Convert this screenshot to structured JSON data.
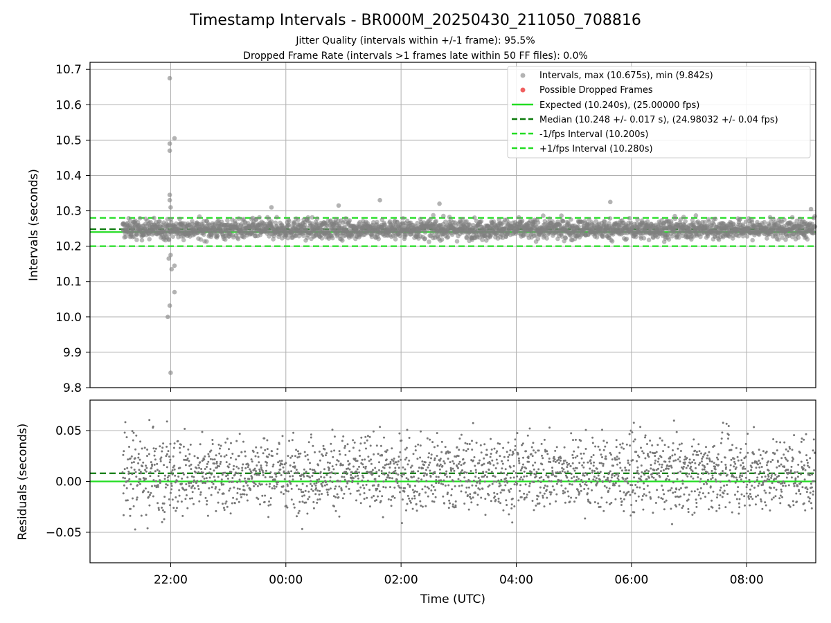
{
  "chart_data": [
    {
      "type": "scatter",
      "title": "Timestamp Intervals - BR000M_20250430_211050_708816",
      "subtitle_lines": [
        "Jitter Quality (intervals within +/-1 frame): 95.5%",
        "Dropped Frame Rate (intervals >1 frames late within 50 FF files): 0.0%"
      ],
      "xlabel": "",
      "ylabel": "Intervals (seconds)",
      "ylim": [
        9.8,
        10.72
      ],
      "yticks": [
        9.8,
        9.9,
        10.0,
        10.1,
        10.2,
        10.3,
        10.4,
        10.5,
        10.6,
        10.7
      ],
      "ytick_labels": [
        "9.8",
        "9.9",
        "10.0",
        "10.1",
        "10.2",
        "10.3",
        "10.4",
        "10.5",
        "10.6",
        "10.7"
      ],
      "xlim_hours": [
        20.6,
        33.2
      ],
      "xticks_hours": [
        22,
        24,
        26,
        28,
        30,
        32
      ],
      "grid": true,
      "legend_position": "top-right",
      "series": [
        {
          "name": "Intervals, max (10.675s), min (9.842s)",
          "kind": "scatter",
          "color": "#808080",
          "x_start": "21:10",
          "x_end": "09:11",
          "typical_range": [
            10.2,
            10.29
          ],
          "outliers": [
            {
              "x": "21:59",
              "y": 10.675
            },
            {
              "x": "21:59",
              "y": 10.49
            },
            {
              "x": "21:59",
              "y": 10.47
            },
            {
              "x": "22:04",
              "y": 10.505
            },
            {
              "x": "21:59",
              "y": 10.345
            },
            {
              "x": "21:59",
              "y": 10.33
            },
            {
              "x": "22:00",
              "y": 10.31
            },
            {
              "x": "21:58",
              "y": 10.165
            },
            {
              "x": "22:00",
              "y": 10.175
            },
            {
              "x": "22:01",
              "y": 10.135
            },
            {
              "x": "22:04",
              "y": 10.145
            },
            {
              "x": "22:04",
              "y": 10.07
            },
            {
              "x": "21:59",
              "y": 10.032
            },
            {
              "x": "21:57",
              "y": 10.0
            },
            {
              "x": "22:00",
              "y": 9.842
            },
            {
              "x": "01:38",
              "y": 10.33
            },
            {
              "x": "05:38",
              "y": 10.325
            },
            {
              "x": "02:40",
              "y": 10.32
            },
            {
              "x": "00:55",
              "y": 10.315
            },
            {
              "x": "23:45",
              "y": 10.31
            },
            {
              "x": "09:07",
              "y": 10.305
            }
          ]
        },
        {
          "name": "Possible Dropped Frames",
          "kind": "scatter",
          "color": "#f06060",
          "points": []
        },
        {
          "name": "Expected (10.240s), (25.00000 fps)",
          "kind": "hline",
          "style": "solid",
          "color": "#22dd22",
          "y": 10.24
        },
        {
          "name": "Median (10.248 +/- 0.017 s), (24.98032 +/- 0.04 fps)",
          "kind": "hline",
          "style": "dashed",
          "color": "#0b7a0b",
          "y": 10.248
        },
        {
          "name": "-1/fps Interval (10.200s)",
          "kind": "hline",
          "style": "dashed",
          "color": "#22dd22",
          "y": 10.2
        },
        {
          "name": "+1/fps Interval (10.280s)",
          "kind": "hline",
          "style": "dashed",
          "color": "#22dd22",
          "y": 10.28
        }
      ]
    },
    {
      "type": "scatter",
      "title": "",
      "xlabel": "Time (UTC)",
      "ylabel": "Residuals (seconds)",
      "ylim": [
        -0.08,
        0.08
      ],
      "yticks": [
        -0.05,
        0.0,
        0.05
      ],
      "ytick_labels": [
        "−0.05",
        "0.00",
        "0.05"
      ],
      "xlim_hours": [
        20.6,
        33.2
      ],
      "xticks_hours": [
        22,
        24,
        26,
        28,
        30,
        32
      ],
      "xtick_labels": [
        "22:00",
        "00:00",
        "02:00",
        "04:00",
        "06:00",
        "08:00"
      ],
      "grid": true,
      "series": [
        {
          "name": "",
          "kind": "scatter",
          "color": "#777777",
          "x_start": "21:10",
          "x_end": "09:11",
          "typical_range": [
            -0.03,
            0.045
          ]
        },
        {
          "name": "",
          "kind": "hline",
          "style": "solid",
          "color": "#22dd22",
          "y": 0.0
        },
        {
          "name": "",
          "kind": "hline",
          "style": "dashed",
          "color": "#0b7a0b",
          "y": 0.008
        }
      ]
    }
  ]
}
